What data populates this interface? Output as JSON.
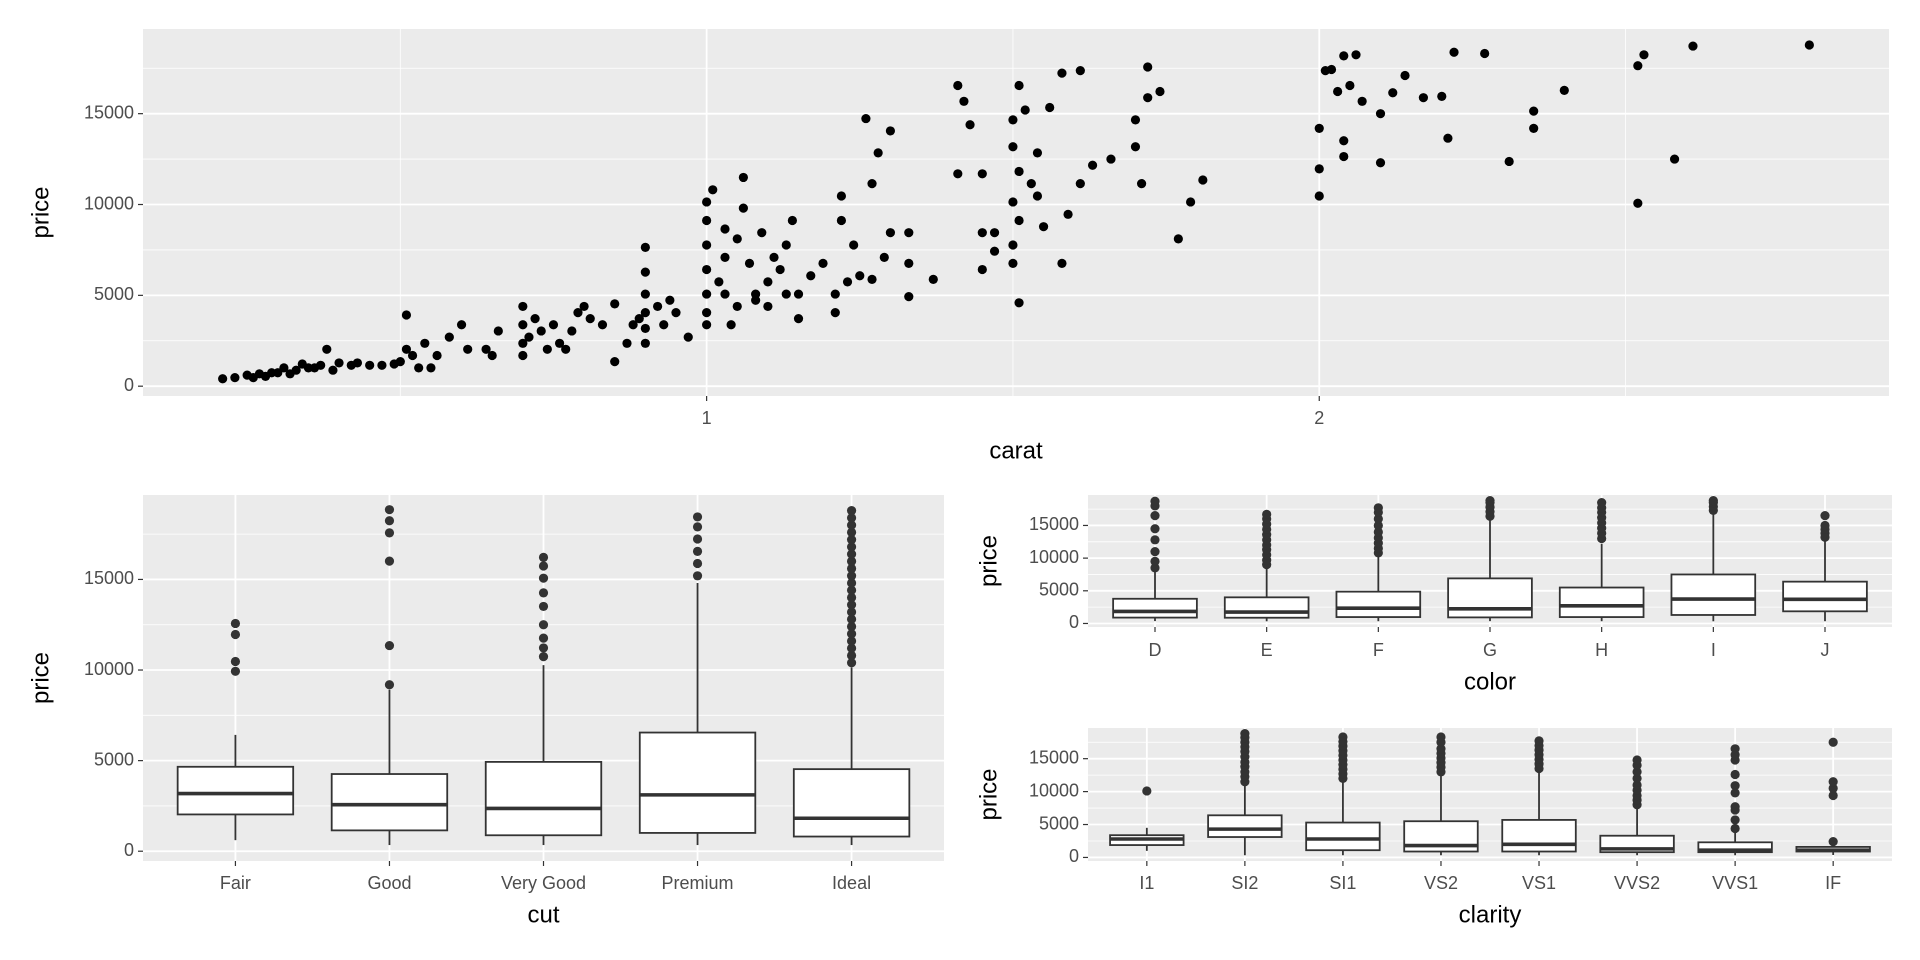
{
  "chart_data": [
    {
      "type": "scatter",
      "x_label": "carat",
      "y_label": "price",
      "color": "#000000",
      "grid": true,
      "xlim": [
        0.08,
        2.93
      ],
      "xticks": [
        1,
        2
      ],
      "x_minor_breaks": [
        0.5,
        1.5,
        2.5
      ],
      "ylim": [
        -540,
        19660
      ],
      "yticks": [
        0,
        5000,
        10000,
        15000
      ],
      "y_minor_breaks": [
        2500,
        7500,
        12500,
        17500
      ],
      "x": [
        0.21,
        0.23,
        0.25,
        0.26,
        0.27,
        0.28,
        0.29,
        0.3,
        0.31,
        0.32,
        0.33,
        0.34,
        0.35,
        0.36,
        0.37,
        0.38,
        0.39,
        0.4,
        0.42,
        0.43,
        0.45,
        0.47,
        0.49,
        0.5,
        0.51,
        0.51,
        0.52,
        0.53,
        0.54,
        0.55,
        0.56,
        0.58,
        0.6,
        0.61,
        0.64,
        0.65,
        0.66,
        0.7,
        0.7,
        0.7,
        0.7,
        0.71,
        0.72,
        0.73,
        0.74,
        0.75,
        0.76,
        0.77,
        0.78,
        0.79,
        0.8,
        0.81,
        0.83,
        0.85,
        0.85,
        0.87,
        0.88,
        0.89,
        0.9,
        0.9,
        0.9,
        0.9,
        0.9,
        0.9,
        0.92,
        0.93,
        0.94,
        0.95,
        0.97,
        1.0,
        1.0,
        1.0,
        1.0,
        1.0,
        1.0,
        1.0,
        1.01,
        1.02,
        1.03,
        1.03,
        1.03,
        1.04,
        1.05,
        1.05,
        1.06,
        1.06,
        1.07,
        1.08,
        1.08,
        1.09,
        1.1,
        1.1,
        1.11,
        1.12,
        1.13,
        1.13,
        1.14,
        1.15,
        1.15,
        1.17,
        1.19,
        1.21,
        1.21,
        1.22,
        1.22,
        1.23,
        1.24,
        1.25,
        1.26,
        1.27,
        1.27,
        1.28,
        1.29,
        1.3,
        1.3,
        1.33,
        1.33,
        1.33,
        1.37,
        1.41,
        1.41,
        1.42,
        1.43,
        1.45,
        1.45,
        1.45,
        1.47,
        1.47,
        1.5,
        1.5,
        1.5,
        1.5,
        1.5,
        1.51,
        1.51,
        1.51,
        1.51,
        1.52,
        1.53,
        1.54,
        1.54,
        1.55,
        1.56,
        1.58,
        1.58,
        1.59,
        1.61,
        1.61,
        1.63,
        1.66,
        1.7,
        1.7,
        1.71,
        1.72,
        1.72,
        1.74,
        1.77,
        1.79,
        1.81,
        2.0,
        2.0,
        2.0,
        2.01,
        2.02,
        2.03,
        2.04,
        2.04,
        2.04,
        2.05,
        2.06,
        2.07,
        2.1,
        2.1,
        2.12,
        2.14,
        2.17,
        2.2,
        2.21,
        2.22,
        2.27,
        2.31,
        2.35,
        2.35,
        2.4,
        2.52,
        2.52,
        2.53,
        2.58,
        2.61,
        2.8
      ],
      "y": [
        410,
        470,
        610,
        470,
        680,
        540,
        740,
        740,
        1010,
        680,
        880,
        1220,
        1010,
        1010,
        1150,
        2030,
        880,
        1280,
        1150,
        1280,
        1150,
        1150,
        1220,
        1350,
        3920,
        2030,
        1690,
        1010,
        2360,
        1010,
        1690,
        2700,
        3380,
        2030,
        2030,
        1690,
        3040,
        4390,
        3380,
        2360,
        1690,
        2700,
        3720,
        3040,
        2030,
        3380,
        2360,
        2030,
        3040,
        4050,
        4390,
        3720,
        3380,
        4530,
        1350,
        2360,
        3380,
        3720,
        7640,
        6280,
        5070,
        4050,
        3180,
        2360,
        4390,
        3380,
        4730,
        4050,
        2700,
        9120,
        10140,
        7770,
        6420,
        5070,
        4050,
        3380,
        10810,
        5740,
        7090,
        5070,
        8650,
        3380,
        8110,
        4390,
        9800,
        11490,
        6760,
        4730,
        5070,
        8450,
        5740,
        4390,
        7090,
        6420,
        7770,
        5070,
        9120,
        3720,
        5070,
        6080,
        6760,
        5070,
        4050,
        9120,
        10470,
        5740,
        7770,
        6080,
        14730,
        5880,
        11150,
        12840,
        7090,
        14050,
        8450,
        6760,
        8450,
        4930,
        5880,
        16550,
        11690,
        15680,
        14390,
        8450,
        11690,
        6420,
        8450,
        7430,
        6760,
        7770,
        10140,
        13180,
        14660,
        9120,
        11820,
        16550,
        4590,
        15200,
        11150,
        12840,
        10470,
        8780,
        15340,
        17230,
        6760,
        9460,
        17370,
        11150,
        12160,
        12500,
        14660,
        13180,
        11150,
        17570,
        15880,
        16220,
        8110,
        10140,
        11350,
        10470,
        11960,
        14190,
        17370,
        17430,
        16220,
        18180,
        13510,
        12640,
        16550,
        18240,
        15680,
        15000,
        12300,
        16150,
        17100,
        15880,
        15950,
        13650,
        18380,
        18310,
        12370,
        15140,
        14190,
        16280,
        10070,
        17640,
        18240,
        12500,
        18720,
        18780
      ]
    },
    {
      "type": "boxplot",
      "x_label": "cut",
      "y_label": "price",
      "fill": "#ffffff",
      "line_color": "#333333",
      "grid": true,
      "ylim": [
        -540,
        19660
      ],
      "yticks": [
        0,
        5000,
        10000,
        15000
      ],
      "y_minor_breaks": [
        2500,
        7500,
        12500,
        17500
      ],
      "categories": [
        "Fair",
        "Good",
        "Very Good",
        "Premium",
        "Ideal"
      ],
      "boxes": [
        {
          "min": 610,
          "q1": 2030,
          "median": 3180,
          "q3": 4660,
          "max": 6420,
          "outliers": [
            9930,
            10470,
            11960,
            12570
          ]
        },
        {
          "min": 340,
          "q1": 1150,
          "median": 2570,
          "q3": 4260,
          "max": 8920,
          "outliers": [
            9190,
            11350,
            16010,
            17570,
            18240,
            18850
          ]
        },
        {
          "min": 340,
          "q1": 880,
          "median": 2360,
          "q3": 4930,
          "max": 10270,
          "outliers": [
            10740,
            11220,
            11760,
            12500,
            13510,
            14260,
            15070,
            15740,
            16220
          ]
        },
        {
          "min": 340,
          "q1": 1010,
          "median": 3110,
          "q3": 6550,
          "max": 14800,
          "outliers": [
            15200,
            15880,
            16550,
            17230,
            17900,
            18450
          ]
        },
        {
          "min": 340,
          "q1": 810,
          "median": 1820,
          "q3": 4530,
          "max": 10140,
          "outliers": [
            10400,
            10800,
            11200,
            11600,
            12000,
            12400,
            12800,
            13200,
            13600,
            14000,
            14400,
            14800,
            15200,
            15600,
            16000,
            16400,
            16800,
            17200,
            17600,
            18000,
            18400,
            18800
          ]
        }
      ]
    },
    {
      "type": "boxplot",
      "x_label": "color",
      "y_label": "price",
      "fill": "#ffffff",
      "line_color": "#333333",
      "grid": true,
      "ylim": [
        -540,
        19660
      ],
      "yticks": [
        0,
        5000,
        10000,
        15000
      ],
      "y_minor_breaks": [
        2500,
        7500,
        12500,
        17500
      ],
      "categories": [
        "D",
        "E",
        "F",
        "G",
        "H",
        "I",
        "J"
      ],
      "boxes": [
        {
          "min": 360,
          "q1": 900,
          "median": 1840,
          "q3": 3780,
          "max": 8000,
          "outliers": [
            8500,
            9500,
            11000,
            12800,
            14500,
            16500,
            18000,
            18700
          ]
        },
        {
          "min": 330,
          "q1": 880,
          "median": 1740,
          "q3": 4000,
          "max": 8600,
          "outliers": [
            9000,
            9700,
            10500,
            11300,
            12000,
            12800,
            13600,
            14400,
            15200,
            16000,
            16700
          ]
        },
        {
          "min": 340,
          "q1": 980,
          "median": 2340,
          "q3": 4870,
          "max": 10400,
          "outliers": [
            10800,
            11500,
            12300,
            13100,
            14000,
            15000,
            16000,
            17000,
            17700
          ]
        },
        {
          "min": 350,
          "q1": 930,
          "median": 2240,
          "q3": 6900,
          "max": 15800,
          "outliers": [
            16400,
            17100,
            17800,
            18500,
            18800
          ]
        },
        {
          "min": 340,
          "q1": 980,
          "median": 2700,
          "q3": 5500,
          "max": 12200,
          "outliers": [
            13000,
            13800,
            14600,
            15400,
            16200,
            17000,
            17700,
            18500
          ]
        },
        {
          "min": 330,
          "q1": 1300,
          "median": 3730,
          "q3": 7500,
          "max": 16700,
          "outliers": [
            17300,
            17900,
            18500,
            18800
          ]
        },
        {
          "min": 340,
          "q1": 1860,
          "median": 3700,
          "q3": 6400,
          "max": 12800,
          "outliers": [
            13200,
            13800,
            14400,
            15000,
            16500
          ]
        }
      ]
    },
    {
      "type": "boxplot",
      "x_label": "clarity",
      "y_label": "price",
      "fill": "#ffffff",
      "line_color": "#333333",
      "grid": true,
      "ylim": [
        -540,
        19660
      ],
      "yticks": [
        0,
        5000,
        10000,
        15000
      ],
      "y_minor_breaks": [
        2500,
        7500,
        12500,
        17500
      ],
      "categories": [
        "I1",
        "SI2",
        "SI1",
        "VS2",
        "VS1",
        "VVS2",
        "VVS1",
        "IF"
      ],
      "boxes": [
        {
          "min": 1000,
          "q1": 1880,
          "median": 2800,
          "q3": 3380,
          "max": 4500,
          "outliers": [
            10100
          ]
        },
        {
          "min": 330,
          "q1": 3100,
          "median": 4300,
          "q3": 6400,
          "max": 11000,
          "outliers": [
            11500,
            12300,
            13000,
            13800,
            14500,
            15300,
            16100,
            16800,
            17500,
            18200,
            18800
          ]
        },
        {
          "min": 330,
          "q1": 1100,
          "median": 2800,
          "q3": 5300,
          "max": 11500,
          "outliers": [
            12000,
            12700,
            13400,
            14100,
            14800,
            15500,
            16200,
            16900,
            17600,
            18300
          ]
        },
        {
          "min": 330,
          "q1": 900,
          "median": 1800,
          "q3": 5500,
          "max": 12500,
          "outliers": [
            13000,
            13700,
            14400,
            15100,
            15800,
            16500,
            17500,
            18300
          ]
        },
        {
          "min": 330,
          "q1": 900,
          "median": 2000,
          "q3": 5700,
          "max": 13000,
          "outliers": [
            13500,
            14200,
            14900,
            15600,
            16300,
            17000,
            17700
          ]
        },
        {
          "min": 330,
          "q1": 800,
          "median": 1300,
          "q3": 3300,
          "max": 7500,
          "outliers": [
            8000,
            8700,
            9400,
            10200,
            11000,
            12000,
            13000,
            14000,
            14800
          ]
        },
        {
          "min": 330,
          "q1": 800,
          "median": 1100,
          "q3": 2300,
          "max": 4100,
          "outliers": [
            4400,
            5700,
            7200,
            7700,
            9800,
            10900,
            12600,
            14800,
            15600,
            16500
          ]
        },
        {
          "min": 370,
          "q1": 900,
          "median": 1100,
          "q3": 1600,
          "max": 2200,
          "outliers": [
            2400,
            9400,
            10500,
            11500,
            17500
          ]
        }
      ]
    }
  ]
}
